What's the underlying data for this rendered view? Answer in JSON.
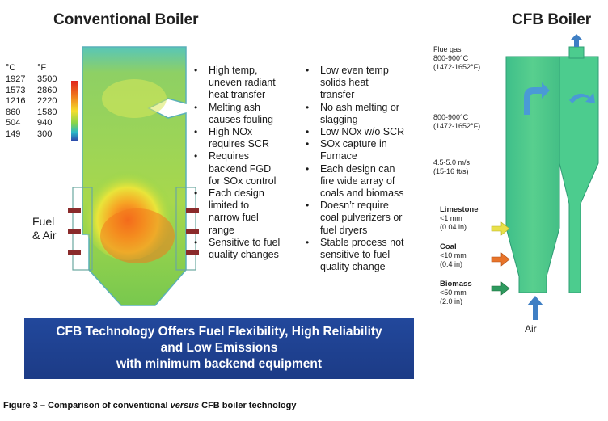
{
  "conventional": {
    "title": "Conventional Boiler",
    "fuel_label_1": "Fuel",
    "fuel_label_2": "& Air"
  },
  "cfb": {
    "title": "CFB Boiler",
    "flue_gas": "Flue gas",
    "flue_temp_c": "800-900°C",
    "flue_temp_f": "(1472-1652°F)",
    "mid_temp_c": "800-900°C",
    "mid_temp_f": "(1472-1652°F)",
    "velocity_ms": "4.5-5.0 m/s",
    "velocity_fts": "(15-16 ft/s)",
    "limestone": "Limestone",
    "limestone_size_1": "<1 mm",
    "limestone_size_2": "(0.04 in)",
    "coal": "Coal",
    "coal_size_1": "<10 mm",
    "coal_size_2": "(0.4 in)",
    "biomass": "Biomass",
    "biomass_size_1": "<50 mm",
    "biomass_size_2": "(2.0 in)",
    "air": "Air",
    "colors": {
      "limestone": "#e8e04a",
      "coal": "#e8742a",
      "biomass": "#2e9a5e",
      "air_arrow": "#3f7fc4"
    }
  },
  "temp_legend": {
    "head_c": "°C",
    "head_f": "°F",
    "rows": [
      {
        "c": "1927",
        "f": "3500"
      },
      {
        "c": "1573",
        "f": "2860"
      },
      {
        "c": "1216",
        "f": "2220"
      },
      {
        "c": "860",
        "f": "1580"
      },
      {
        "c": "504",
        "f": "940"
      },
      {
        "c": "149",
        "f": "300"
      }
    ]
  },
  "conventional_points": [
    "High temp,\nuneven radiant\nheat transfer",
    "Melting ash\ncauses fouling",
    "High NOx\nrequires SCR",
    "Requires\nbackend FGD\nfor SOx control",
    "Each design\nlimited to\nnarrow fuel\nrange",
    "Sensitive to fuel\nquality changes"
  ],
  "cfb_points": [
    "Low even temp\nsolids heat\ntransfer",
    "No ash melting or\nslagging",
    "Low NOx w/o SCR",
    "SOx capture in\nFurnace",
    "Each design can\nfire wide array of\ncoals and biomass",
    "Doesn’t require\ncoal pulverizers or\nfuel dryers",
    "Stable process not\nsensitive to fuel\nquality change"
  ],
  "banner": {
    "line1": "CFB Technology Offers Fuel Flexibility, High Reliability",
    "line2": "and Low Emissions",
    "line3": "with minimum backend equipment"
  },
  "caption": {
    "prefix": "Figure 3 – Comparison of conventional ",
    "versus": "versus",
    "suffix": " CFB boiler technology"
  }
}
